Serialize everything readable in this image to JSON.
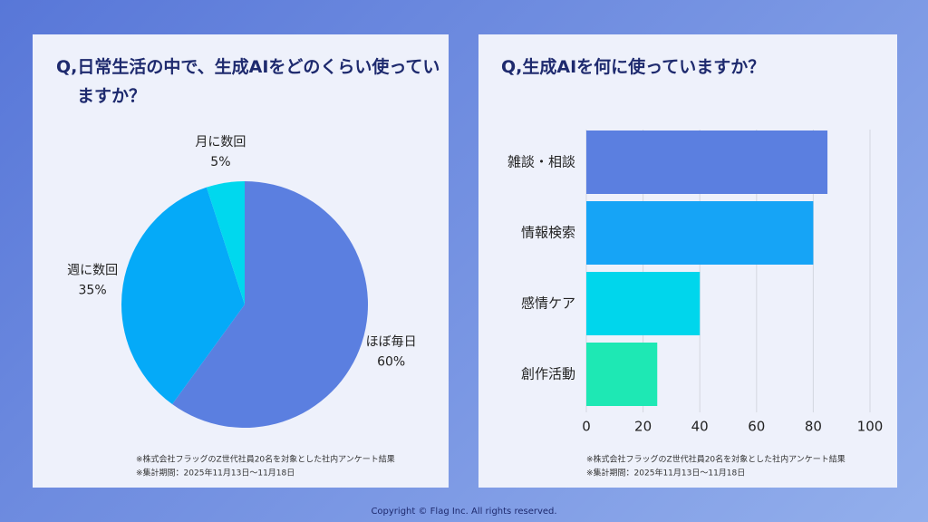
{
  "chart_data": [
    {
      "type": "pie",
      "title": "Q,日常生活の中で、生成AIをどのくらい使っていますか？",
      "categories": [
        "ほぼ毎日",
        "週に数回",
        "月に数回"
      ],
      "values": [
        60,
        35,
        5
      ],
      "value_labels": [
        "60%",
        "35%",
        "5%"
      ],
      "colors": [
        "#5b7fe0",
        "#05aaf8",
        "#00d8ee"
      ],
      "notes": [
        "※株式会社フラッグのZ世代社員20名を対象とした社内アンケート結果",
        "※集計期間：2025年11月13日〜11月18日"
      ]
    },
    {
      "type": "barh",
      "title": "Q,生成AIを何に使っていますか？",
      "categories": [
        "雑談・相談",
        "情報検索",
        "感情ケア",
        "創作活動"
      ],
      "values": [
        85,
        80,
        40,
        25
      ],
      "colors": [
        "#5b7fe0",
        "#16a4f6",
        "#00d6ec",
        "#1ee8b4"
      ],
      "xlim": [
        0,
        100
      ],
      "xticks": [
        0,
        20,
        40,
        60,
        80,
        100
      ],
      "grid": true,
      "notes": [
        "※株式会社フラッグのZ世代社員20名を対象とした社内アンケート結果",
        "※集計期間：2025年11月13日〜11月18日"
      ]
    }
  ],
  "footer": "Copyright © Flag Inc. All rights reserved."
}
